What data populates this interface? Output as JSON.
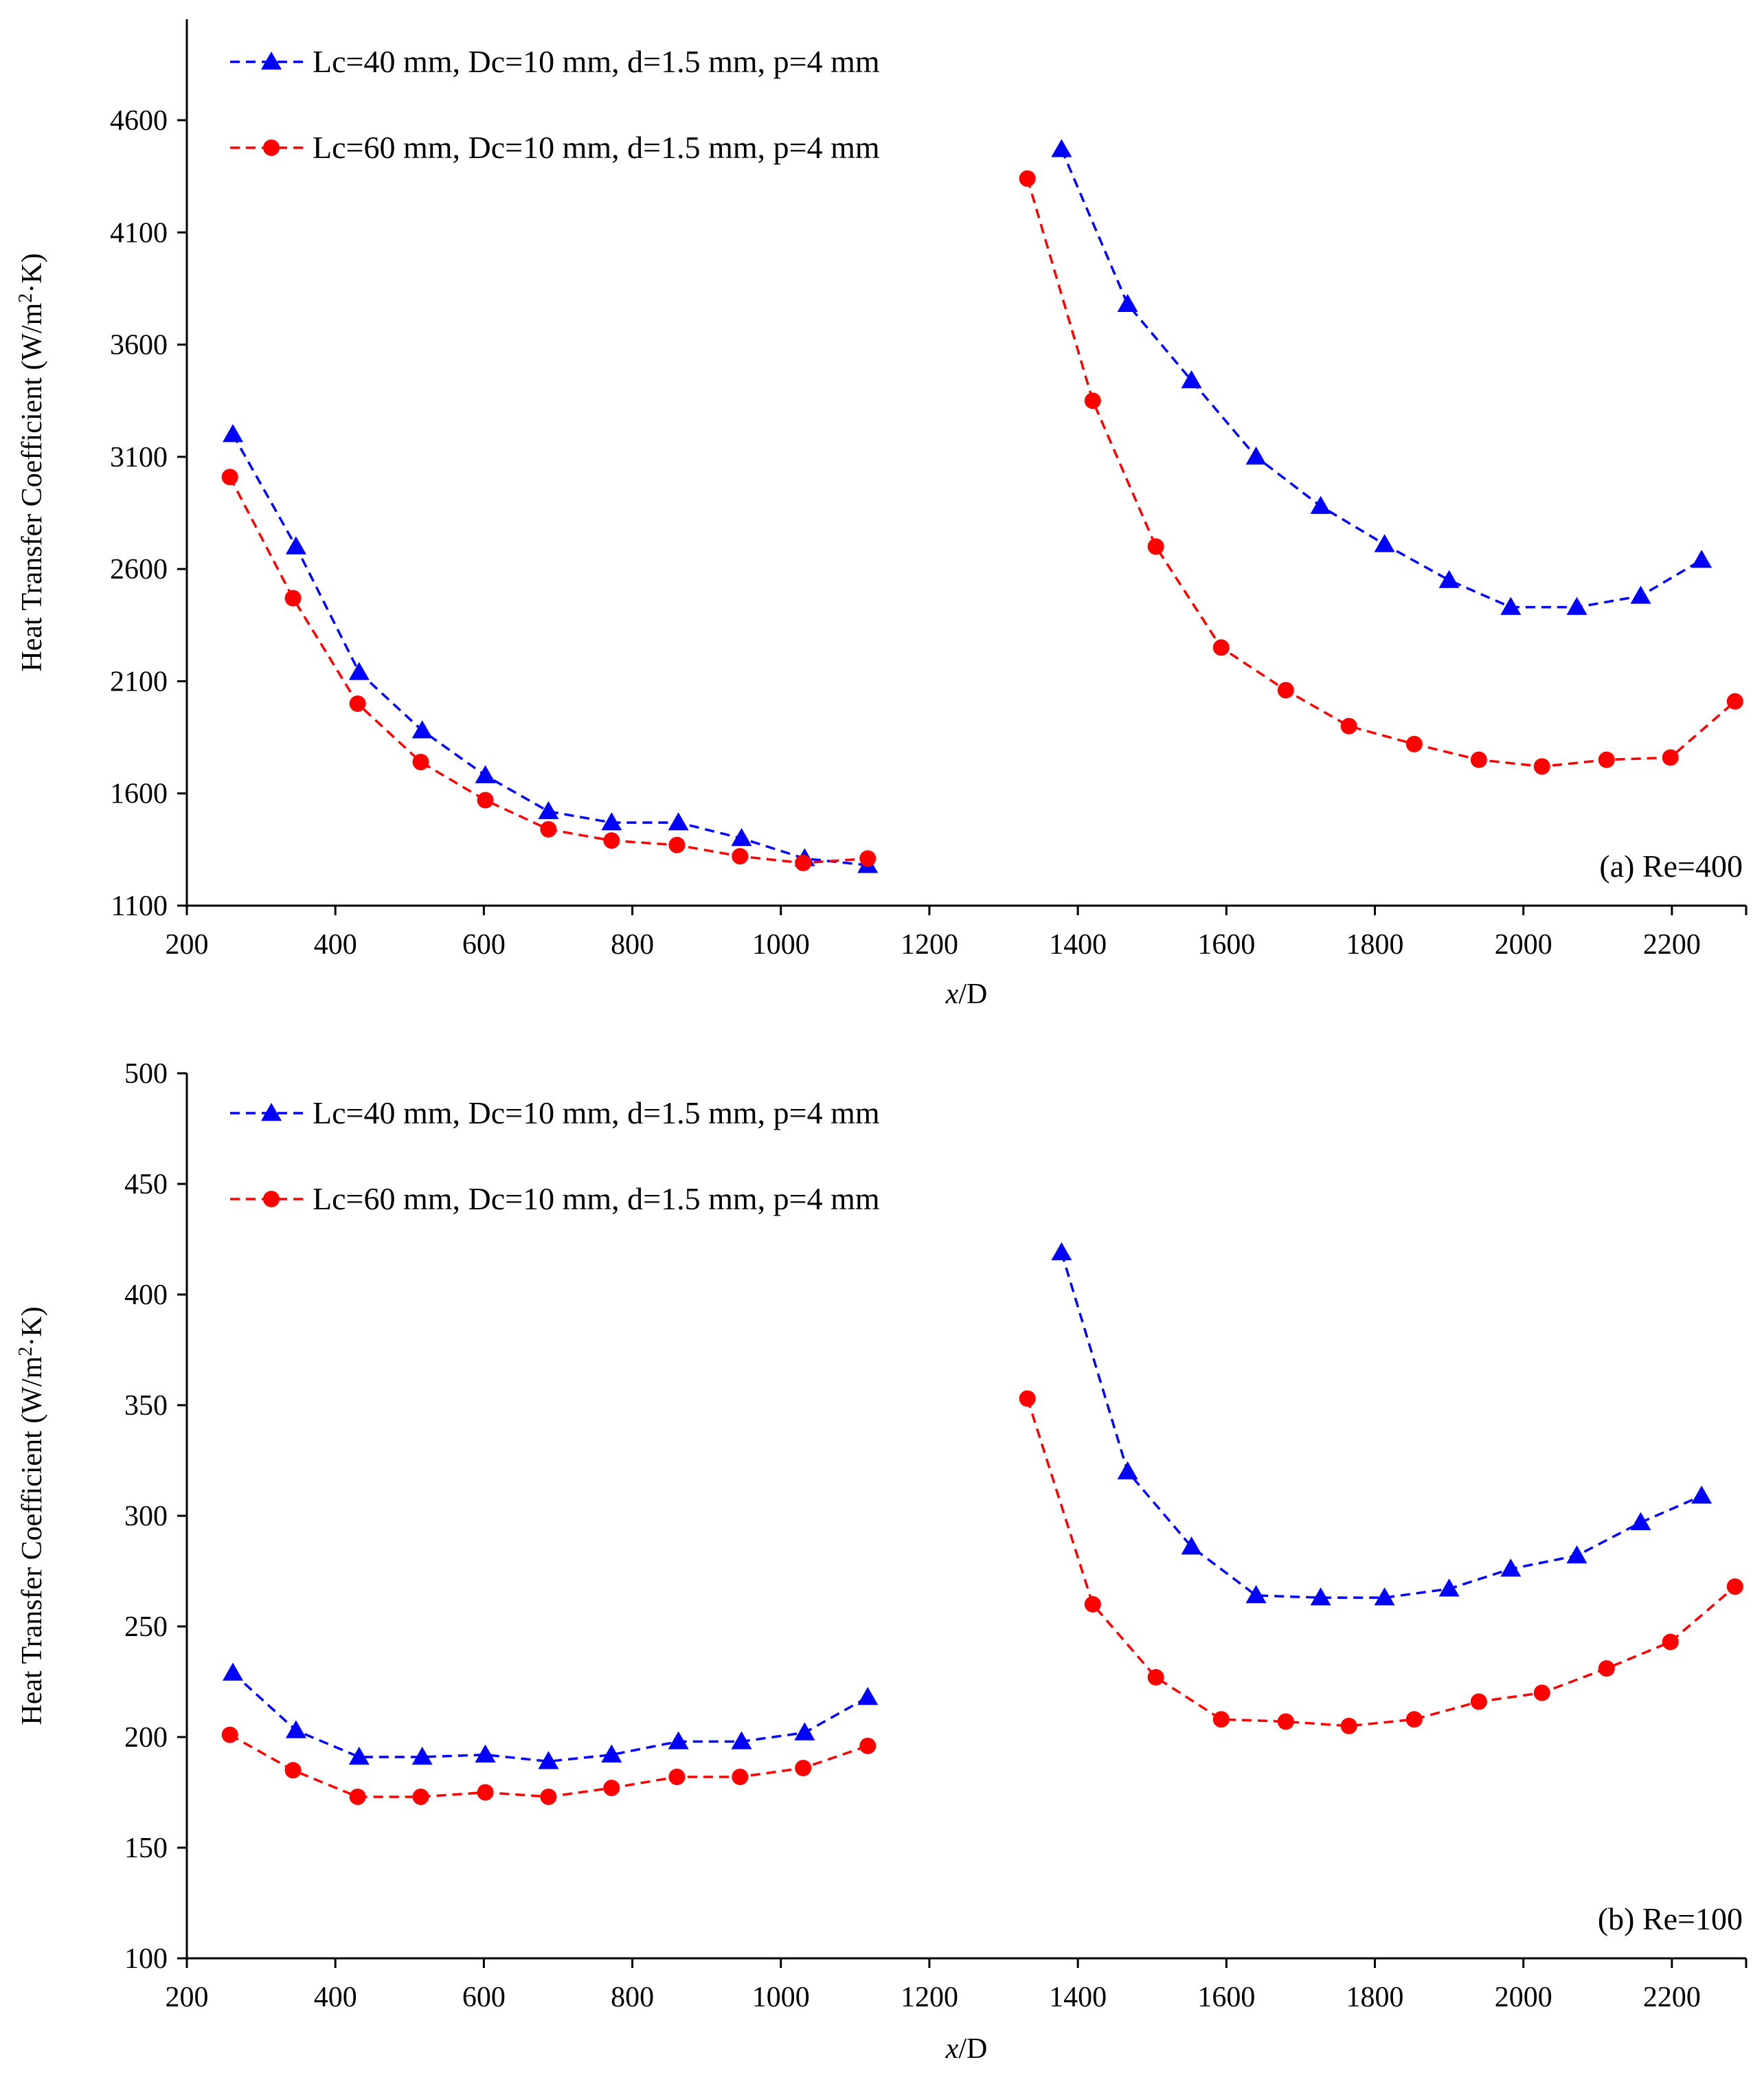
{
  "chart_data": [
    {
      "type": "line",
      "panel_label": "(a) Re=400",
      "xlabel_italic": "x",
      "xlabel_rest": "/D",
      "ylabel_main": "Heat Transfer Coefficient (W/m",
      "ylabel_sup": "2",
      "ylabel_tail": "·K)",
      "xlim": [
        200,
        2300
      ],
      "ylim": [
        1100,
        5050
      ],
      "xticks": [
        200,
        400,
        600,
        800,
        1000,
        1200,
        1400,
        1600,
        1800,
        2000,
        2200
      ],
      "yticks": [
        1100,
        1600,
        2100,
        2600,
        3100,
        3600,
        4100,
        4600
      ],
      "legend_position": "top-left",
      "series": [
        {
          "name": "Lc=40 mm, Dc=10 mm, d=1.5 mm, p=4 mm",
          "color": "#0000FF",
          "marker": "triangle",
          "segments": [
            {
              "x": [
                262,
                347,
                432,
                517,
                602,
                687,
                772,
                862,
                947,
                1032,
                1117
              ],
              "y": [
                3200,
                2700,
                2140,
                1880,
                1680,
                1520,
                1470,
                1470,
                1400,
                1310,
                1280
              ]
            },
            {
              "x": [
                1378,
                1467,
                1553,
                1640,
                1727,
                1813,
                1900,
                1983,
                2072,
                2158,
                2240
              ],
              "y": [
                4470,
                3780,
                3440,
                3100,
                2880,
                2710,
                2550,
                2430,
                2430,
                2480,
                2640
              ]
            }
          ]
        },
        {
          "name": "Lc=60 mm, Dc=10 mm, d=1.5 mm, p=4 mm",
          "color": "#FF0000",
          "marker": "circle",
          "segments": [
            {
              "x": [
                258,
                343,
                430,
                515,
                602,
                687,
                772,
                860,
                945,
                1030,
                1117
              ],
              "y": [
                3010,
                2470,
                2000,
                1740,
                1570,
                1440,
                1390,
                1370,
                1320,
                1290,
                1310
              ]
            },
            {
              "x": [
                1332,
                1420,
                1505,
                1593,
                1680,
                1765,
                1853,
                1940,
                2025,
                2112,
                2198,
                2285
              ],
              "y": [
                4340,
                3350,
                2700,
                2250,
                2060,
                1900,
                1820,
                1750,
                1720,
                1750,
                1760,
                2010
              ]
            }
          ]
        }
      ]
    },
    {
      "type": "line",
      "panel_label": "(b) Re=100",
      "xlabel_italic": "x",
      "xlabel_rest": "/D",
      "ylabel_main": "Heat Transfer Coefficient (W/m",
      "ylabel_sup": "2",
      "ylabel_tail": "·K)",
      "xlim": [
        200,
        2300
      ],
      "ylim": [
        100,
        500
      ],
      "xticks": [
        200,
        400,
        600,
        800,
        1000,
        1200,
        1400,
        1600,
        1800,
        2000,
        2200
      ],
      "yticks": [
        100,
        150,
        200,
        250,
        300,
        350,
        400,
        450,
        500
      ],
      "legend_position": "top-left",
      "series": [
        {
          "name": "Lc=40 mm, Dc=10 mm, d=1.5 mm, p=4 mm",
          "color": "#0000FF",
          "marker": "triangle",
          "segments": [
            {
              "x": [
                262,
                347,
                432,
                517,
                602,
                687,
                772,
                862,
                947,
                1032,
                1117
              ],
              "y": [
                229,
                203,
                191,
                191,
                192,
                189,
                192,
                198,
                198,
                202,
                218
              ]
            },
            {
              "x": [
                1378,
                1467,
                1553,
                1640,
                1727,
                1813,
                1900,
                1983,
                2072,
                2158,
                2240
              ],
              "y": [
                419,
                320,
                286,
                264,
                263,
                263,
                267,
                276,
                282,
                297,
                309
              ]
            }
          ]
        },
        {
          "name": "Lc=60 mm, Dc=10 mm, d=1.5 mm, p=4 mm",
          "color": "#FF0000",
          "marker": "circle",
          "segments": [
            {
              "x": [
                258,
                343,
                430,
                515,
                602,
                687,
                772,
                860,
                945,
                1030,
                1117
              ],
              "y": [
                201,
                185,
                173,
                173,
                175,
                173,
                177,
                182,
                182,
                186,
                196
              ]
            },
            {
              "x": [
                1332,
                1420,
                1505,
                1593,
                1680,
                1765,
                1853,
                1940,
                2025,
                2112,
                2198,
                2285
              ],
              "y": [
                353,
                260,
                227,
                208,
                207,
                205,
                208,
                216,
                220,
                231,
                243,
                268
              ]
            }
          ]
        }
      ]
    }
  ]
}
